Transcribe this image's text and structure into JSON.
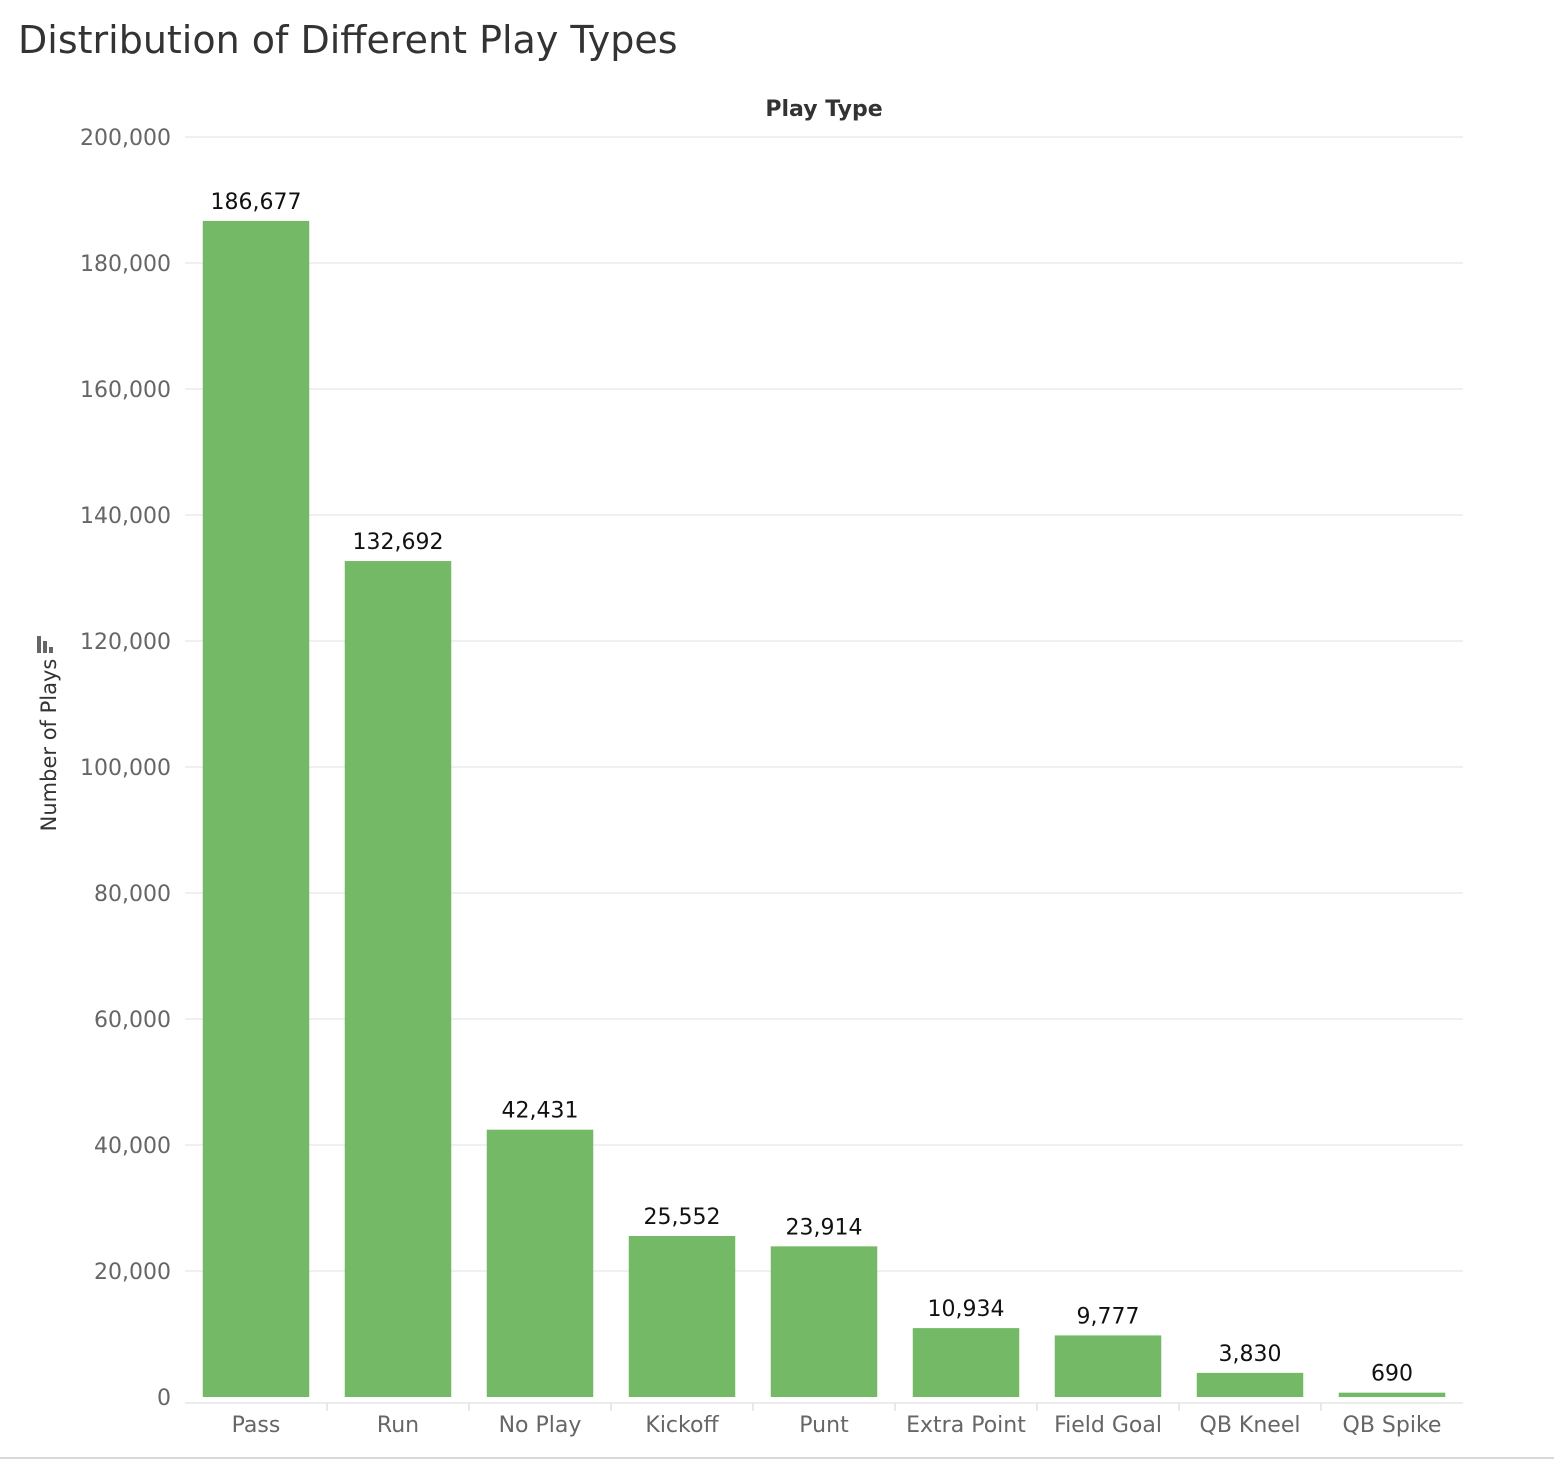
{
  "chart_data": {
    "type": "bar",
    "title": "Distribution of Different Play Types",
    "xlabel": "Play Type",
    "ylabel": "Number of Plays",
    "categories": [
      "Pass",
      "Run",
      "No Play",
      "Kickoff",
      "Punt",
      "Extra Point",
      "Field Goal",
      "QB Kneel",
      "QB Spike"
    ],
    "values": [
      186677,
      132692,
      42431,
      25552,
      23914,
      10934,
      9777,
      3830,
      690
    ],
    "data_labels": [
      "186,677",
      "132,692",
      "42,431",
      "25,552",
      "23,914",
      "10,934",
      "9,777",
      "3,830",
      "690"
    ],
    "yticks": [
      0,
      20000,
      40000,
      60000,
      80000,
      100000,
      120000,
      140000,
      160000,
      180000,
      200000
    ],
    "ytick_labels": [
      "0",
      "20,000",
      "40,000",
      "60,000",
      "80,000",
      "100,000",
      "120,000",
      "140,000",
      "160,000",
      "180,000",
      "200,000"
    ],
    "ylim": [
      0,
      200000
    ],
    "grid": true,
    "colors": {
      "bar": "#73b966",
      "grid": "#ececec",
      "axis_text": "#666666",
      "label_text": "#111111"
    }
  }
}
